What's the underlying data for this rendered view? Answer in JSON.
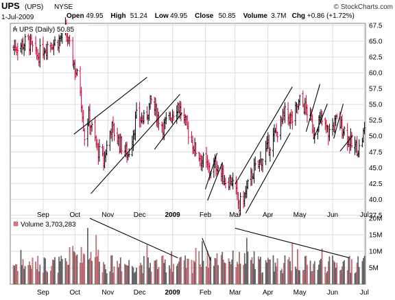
{
  "header": {
    "symbol": "UPS",
    "symbol_paren": "(UPS)",
    "exchange": "NYSE",
    "date": "1-Jul-2009",
    "watermark": "© StockCharts.com",
    "stats": [
      {
        "label": "Open",
        "value": "49.95"
      },
      {
        "label": "High",
        "value": "51.24"
      },
      {
        "label": "Low",
        "value": "49.95"
      },
      {
        "label": "Close",
        "value": "50.85"
      },
      {
        "label": "Volume",
        "value": "3.7M"
      },
      {
        "label": "Chg",
        "value": "+0.86 (+1.72%)"
      }
    ]
  },
  "colors": {
    "up": "#000000",
    "down": "#cc0033",
    "vol_up": "#666666",
    "vol_down": "#e8707a",
    "grid": "#dcdcdc",
    "frame": "#808080",
    "trend": "#000000"
  },
  "chart_data": [
    {
      "type": "ohlc",
      "legend": "UPS (Daily) 50.85",
      "ylim": [
        37.0,
        67.5
      ],
      "y_ticks": [
        "67.5",
        "65.0",
        "62.5",
        "60.0",
        "57.5",
        "55.0",
        "52.5",
        "50.0",
        "47.5",
        "45.0",
        "42.5",
        "40.0",
        "37.5"
      ],
      "x_ticks": [
        "Sep",
        "Oct",
        "Nov",
        "Dec",
        "2009",
        "Feb",
        "Mar",
        "Apr",
        "May",
        "Jun",
        "Jul"
      ],
      "grid": true,
      "anchors": [
        [
          "2008-08-04",
          64.0
        ],
        [
          "2008-08-18",
          65.0
        ],
        [
          "2008-08-26",
          62.5
        ],
        [
          "2008-09-05",
          64.5
        ],
        [
          "2008-09-15",
          65.0
        ],
        [
          "2008-09-22",
          66.5
        ],
        [
          "2008-09-29",
          62.0
        ],
        [
          "2008-10-06",
          57.5
        ],
        [
          "2008-10-10",
          50.0
        ],
        [
          "2008-10-14",
          53.0
        ],
        [
          "2008-10-22",
          48.0
        ],
        [
          "2008-10-28",
          46.0
        ],
        [
          "2008-11-04",
          51.5
        ],
        [
          "2008-11-12",
          49.0
        ],
        [
          "2008-11-20",
          47.0
        ],
        [
          "2008-11-28",
          53.0
        ],
        [
          "2008-12-05",
          52.5
        ],
        [
          "2008-12-12",
          55.5
        ],
        [
          "2008-12-18",
          53.0
        ],
        [
          "2008-12-24",
          51.5
        ],
        [
          "2009-01-06",
          55.0
        ],
        [
          "2009-01-13",
          52.0
        ],
        [
          "2009-01-22",
          48.0
        ],
        [
          "2009-01-30",
          46.0
        ],
        [
          "2009-02-05",
          44.5
        ],
        [
          "2009-02-12",
          45.5
        ],
        [
          "2009-02-19",
          43.0
        ],
        [
          "2009-02-26",
          43.0
        ],
        [
          "2009-03-05",
          39.0
        ],
        [
          "2009-03-10",
          40.5
        ],
        [
          "2009-03-17",
          44.0
        ],
        [
          "2009-03-25",
          46.0
        ],
        [
          "2009-04-02",
          48.5
        ],
        [
          "2009-04-09",
          50.5
        ],
        [
          "2009-04-17",
          53.5
        ],
        [
          "2009-04-24",
          52.5
        ],
        [
          "2009-05-01",
          55.5
        ],
        [
          "2009-05-08",
          54.0
        ],
        [
          "2009-05-14",
          51.0
        ],
        [
          "2009-05-21",
          52.5
        ],
        [
          "2009-05-28",
          50.5
        ],
        [
          "2009-06-05",
          52.5
        ],
        [
          "2009-06-12",
          51.0
        ],
        [
          "2009-06-19",
          48.5
        ],
        [
          "2009-06-26",
          48.0
        ],
        [
          "2009-07-01",
          50.85
        ]
      ],
      "trendlines": [
        [
          [
            "2008-09-30",
            50.3
          ],
          [
            "2008-12-08",
            59.3
          ]
        ],
        [
          [
            "2008-10-16",
            40.9
          ],
          [
            "2009-01-08",
            56.6
          ]
        ],
        [
          [
            "2008-12-15",
            47.9
          ],
          [
            "2009-01-10",
            53.7
          ]
        ],
        [
          [
            "2009-02-01",
            41.6
          ],
          [
            "2009-02-12",
            47.3
          ]
        ],
        [
          [
            "2009-02-03",
            39.8
          ],
          [
            "2009-02-17",
            45.8
          ]
        ],
        [
          [
            "2009-03-01",
            42.4
          ],
          [
            "2009-04-24",
            57.8
          ]
        ],
        [
          [
            "2009-03-11",
            37.8
          ],
          [
            "2009-04-22",
            50.5
          ]
        ],
        [
          [
            "2009-05-07",
            50.7
          ],
          [
            "2009-05-20",
            58.2
          ]
        ],
        [
          [
            "2009-05-14",
            49.5
          ],
          [
            "2009-05-27",
            55.1
          ]
        ],
        [
          [
            "2009-06-02",
            49.6
          ],
          [
            "2009-06-11",
            55.1
          ]
        ],
        [
          [
            "2009-06-08",
            47.6
          ],
          [
            "2009-06-20",
            50.1
          ]
        ]
      ]
    },
    {
      "type": "bar",
      "legend": "Volume 3,703,283",
      "ylim": [
        0,
        20
      ],
      "y_ticks": [
        "20M",
        "15M",
        "10M",
        "5M"
      ],
      "trendlines": [
        [
          [
            "2008-10-15",
            20.0
          ],
          [
            "2009-01-06",
            8.0
          ]
        ],
        [
          [
            "2009-01-29",
            14.0
          ],
          [
            "2009-02-06",
            7.2
          ]
        ],
        [
          [
            "2009-03-01",
            17.0
          ],
          [
            "2009-06-17",
            8.0
          ]
        ]
      ]
    }
  ]
}
